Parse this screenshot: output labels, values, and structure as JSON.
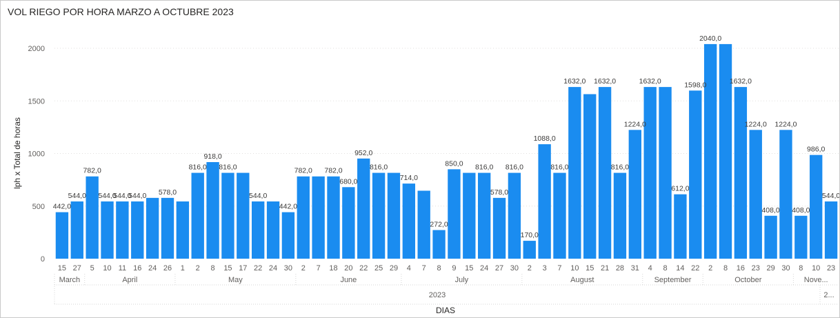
{
  "chart_data": {
    "type": "bar",
    "title": "VOL RIEGO POR HORA MARZO A OCTUBRE 2023",
    "xlabel": "DIAS",
    "ylabel": "lph x Total de horas",
    "ylim": [
      0,
      2150
    ],
    "yticks": [
      0,
      500,
      1000,
      1500,
      2000
    ],
    "grid": true,
    "bar_color": "#1a8cf0",
    "year_label": "2023",
    "year_label_overflow": "2...",
    "series": [
      {
        "values": [
          442,
          544,
          782,
          544,
          544,
          544,
          578,
          578,
          544,
          816,
          918,
          816,
          816,
          544,
          544,
          442,
          782,
          782,
          782,
          680,
          952,
          816,
          816,
          714,
          646,
          272,
          850,
          816,
          816,
          578,
          816,
          170,
          1088,
          816,
          1632,
          1564,
          1632,
          816,
          1224,
          1632,
          1632,
          612,
          1598,
          2040,
          2040,
          1632,
          1224,
          408,
          1224,
          408,
          986,
          544
        ],
        "labels": [
          "442,0",
          "544,0",
          "782,0",
          "544,0",
          "544,0",
          "544,0",
          "",
          "578,0",
          "",
          "816,0",
          "918,0",
          "816,0",
          "",
          "544,0",
          "",
          "442,0",
          "782,0",
          "",
          "782,0",
          "680,0",
          "952,0",
          "816,0",
          "",
          "714,0",
          "",
          "272,0",
          "850,0",
          "",
          "816,0",
          "578,0",
          "816,0",
          "170,0",
          "1088,0",
          "816,0",
          "1632,0",
          "",
          "1632,0",
          "816,0",
          "1224,0",
          "1632,0",
          "",
          "612,0",
          "1598,0",
          "2040,0",
          "",
          "1632,0",
          "1224,0",
          "408,0",
          "1224,0",
          "408,0",
          "986,0",
          "544,0"
        ]
      }
    ],
    "categories": [
      "15",
      "27",
      "5",
      "10",
      "11",
      "16",
      "24",
      "26",
      "1",
      "2",
      "8",
      "15",
      "17",
      "22",
      "24",
      "30",
      "2",
      "7",
      "18",
      "20",
      "22",
      "25",
      "29",
      "4",
      "7",
      "8",
      "9",
      "15",
      "24",
      "27",
      "30",
      "2",
      "3",
      "7",
      "10",
      "15",
      "21",
      "28",
      "31",
      "4",
      "8",
      "14",
      "22",
      "2",
      "8",
      "16",
      "23",
      "29",
      "30",
      "8",
      "10",
      "23"
    ],
    "months": [
      {
        "label": "March",
        "start": 0,
        "end": 1
      },
      {
        "label": "April",
        "start": 2,
        "end": 7
      },
      {
        "label": "May",
        "start": 8,
        "end": 15
      },
      {
        "label": "June",
        "start": 16,
        "end": 22
      },
      {
        "label": "July",
        "start": 23,
        "end": 30
      },
      {
        "label": "August",
        "start": 31,
        "end": 38
      },
      {
        "label": "September",
        "start": 39,
        "end": 42
      },
      {
        "label": "October",
        "start": 43,
        "end": 48
      },
      {
        "label": "Nove...",
        "start": 49,
        "end": 51
      }
    ]
  }
}
